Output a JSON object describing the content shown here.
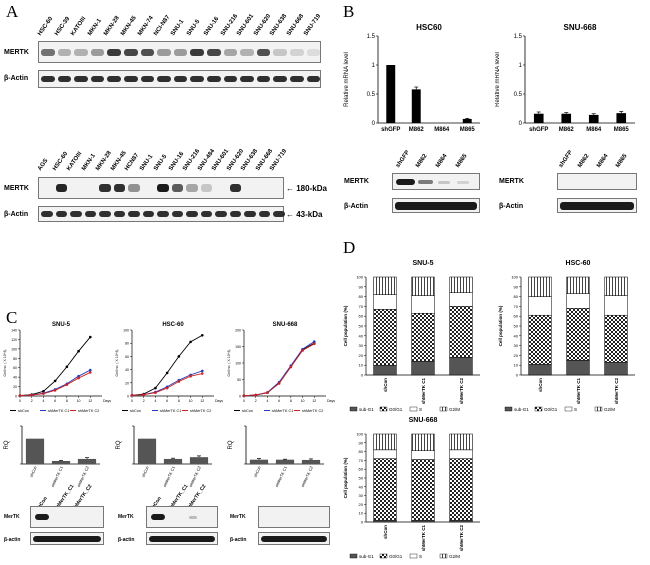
{
  "panels": {
    "A": {
      "letter": "A",
      "blot1": {
        "lanes": [
          "HSC-60",
          "HSC-39",
          "KATOIII",
          "MKN-1",
          "MKN-28",
          "MKN-45",
          "MKN-74",
          "NCI-N87",
          "SNU-1",
          "SNU-5",
          "SNU-16",
          "SNU-216",
          "SNU-601",
          "SNU-620",
          "SNU-638",
          "SNU-668",
          "SNU-719"
        ],
        "rows": [
          "MERTK",
          "β-Actin"
        ],
        "mertk_intensity": [
          0.6,
          0.3,
          0.3,
          0.4,
          0.85,
          0.8,
          0.75,
          0.4,
          0.4,
          0.85,
          0.8,
          0.35,
          0.3,
          0.75,
          0.2,
          0.15,
          0.1
        ]
      },
      "blot2": {
        "lanes": [
          "AGS",
          "HSC-60",
          "KATOIII",
          "MKN-1",
          "MKN-28",
          "MKN-45",
          "HCN87",
          "SNU-1",
          "SNU-5",
          "SNU-16",
          "SNU-216",
          "SNU-484",
          "SNU-601",
          "SNU-620",
          "SNU-638",
          "SNU-668",
          "SNU-719"
        ],
        "rows": [
          "MERTK",
          "β-Actin"
        ],
        "markers": [
          "180-kDa",
          "43-kDa"
        ],
        "mertk_intensity": [
          0.0,
          0.95,
          0.0,
          0.0,
          0.9,
          0.9,
          0.45,
          0.0,
          1.0,
          0.7,
          0.35,
          0.2,
          0.0,
          0.9,
          0.0,
          0.0,
          0.0
        ]
      }
    },
    "B": {
      "letter": "B",
      "charts_titles": [
        "HSC60",
        "SNU-668"
      ],
      "blot_lanes": [
        "shGFP",
        "M862",
        "M864",
        "M865"
      ],
      "blot_rows": [
        "MERTK",
        "β-Actin"
      ]
    },
    "C": {
      "letter": "C",
      "growth_titles": [
        "SNU-5",
        "HSC-60",
        "SNU-668"
      ],
      "growth_xaxis": "Days",
      "growth_ylabel": "Cell no. ( X 10^4)",
      "growth_legend": [
        "shCon",
        "shMerTK C1",
        "shMerTK C2"
      ],
      "rq_ylabel": "RQ",
      "rq_categories": [
        [
          "shCon",
          "shMerTK C1",
          "shMerTK C2"
        ],
        [
          "shCon",
          "shMerTK C1",
          "shMerTK C2"
        ],
        [
          "shCon",
          "shMerTK C1",
          "shMerTK C2"
        ]
      ],
      "blot_lanes": [
        "shCon",
        "shMerTK_C1",
        "shMerTK_C2"
      ],
      "blot_rows": [
        "MerTK",
        "β-actin"
      ]
    },
    "D": {
      "letter": "D",
      "ylabel": "Cell population (%)",
      "legend": [
        "sub-G1",
        "G0/G1",
        "S",
        "G2/M"
      ],
      "titles": [
        "SNU-5",
        "HSC-60",
        "SNU-668"
      ]
    }
  },
  "chart_data": [
    {
      "type": "bar",
      "panel": "B",
      "title": "HSC60",
      "categories": [
        "shGFP",
        "M862",
        "M864",
        "M865"
      ],
      "values": [
        1.0,
        0.58,
        0.0,
        0.07
      ],
      "errors": [
        0.0,
        0.04,
        0.0,
        0.01
      ],
      "xlabel": "",
      "ylabel": "Relative mRNA level",
      "ylim": [
        0,
        1.5
      ],
      "yticks": [
        0,
        0.5,
        1,
        1.5
      ],
      "grid": false
    },
    {
      "type": "bar",
      "panel": "B",
      "title": "SNU-668",
      "categories": [
        "shGFP",
        "M862",
        "M864",
        "M865"
      ],
      "values": [
        0.16,
        0.16,
        0.14,
        0.17
      ],
      "errors": [
        0.03,
        0.02,
        0.02,
        0.03
      ],
      "xlabel": "",
      "ylabel": "Relative mRNA level",
      "ylim": [
        0,
        1.5
      ],
      "yticks": [
        0,
        0.5,
        1,
        1.5
      ],
      "grid": false
    },
    {
      "type": "line",
      "panel": "C",
      "title": "SNU-5",
      "x": [
        0,
        2,
        4,
        6,
        8,
        10,
        12
      ],
      "series": [
        {
          "name": "shCon",
          "color": "#000000",
          "values": [
            1,
            3,
            10,
            32,
            62,
            95,
            125
          ]
        },
        {
          "name": "shMerTK C1",
          "color": "#1f3fbf",
          "values": [
            1,
            2,
            6,
            14,
            26,
            42,
            55
          ]
        },
        {
          "name": "shMerTK C2",
          "color": "#d42020",
          "values": [
            1,
            2,
            5,
            12,
            24,
            38,
            50
          ]
        }
      ],
      "xlabel": "Days",
      "ylabel": "Cell no. ( X 10^4)",
      "ylim": [
        0,
        140
      ],
      "xlim": [
        0,
        14
      ],
      "yticks": [
        0,
        20,
        40,
        60,
        80,
        100,
        120,
        140
      ],
      "xticks": [
        0,
        2,
        4,
        6,
        8,
        10,
        12
      ]
    },
    {
      "type": "line",
      "panel": "C",
      "title": "HSC-60",
      "x": [
        0,
        2,
        4,
        6,
        8,
        10,
        12
      ],
      "series": [
        {
          "name": "shCon",
          "color": "#000000",
          "values": [
            1,
            3,
            12,
            35,
            60,
            82,
            92
          ]
        },
        {
          "name": "shMerTK C1",
          "color": "#1f3fbf",
          "values": [
            1,
            2,
            6,
            14,
            24,
            32,
            38
          ]
        },
        {
          "name": "shMerTK C2",
          "color": "#d42020",
          "values": [
            1,
            2,
            5,
            12,
            22,
            30,
            34
          ]
        }
      ],
      "xlabel": "Days",
      "ylabel": "Cell no. ( X 10^4)",
      "ylim": [
        0,
        100
      ],
      "xlim": [
        0,
        14
      ],
      "yticks": [
        0,
        20,
        40,
        60,
        80,
        100
      ],
      "xticks": [
        0,
        2,
        4,
        6,
        8,
        10,
        12
      ]
    },
    {
      "type": "line",
      "panel": "C",
      "title": "SNU-668",
      "x": [
        0,
        2,
        4,
        6,
        8,
        10,
        12
      ],
      "series": [
        {
          "name": "shCon",
          "color": "#000000",
          "values": [
            1,
            3,
            10,
            40,
            90,
            140,
            160
          ]
        },
        {
          "name": "shMerTK C1",
          "color": "#1f3fbf",
          "values": [
            1,
            3,
            11,
            42,
            92,
            142,
            165
          ]
        },
        {
          "name": "shMerTK C2",
          "color": "#d42020",
          "values": [
            1,
            3,
            10,
            38,
            88,
            138,
            158
          ]
        }
      ],
      "xlabel": "Days",
      "ylabel": "Cell no. ( X 10^4)",
      "ylim": [
        0,
        200
      ],
      "xlim": [
        0,
        14
      ],
      "yticks": [
        0,
        50,
        100,
        150,
        200
      ],
      "xticks": [
        0,
        2,
        4,
        6,
        8,
        10,
        12
      ]
    },
    {
      "type": "bar",
      "panel": "C",
      "title": "SNU-5 RQ",
      "categories": [
        "shCon",
        "shMerTK C1",
        "shMerTK C2"
      ],
      "values": [
        1.0,
        0.12,
        0.2
      ],
      "errors": [
        0,
        0.02,
        0.05
      ],
      "xlabel": "",
      "ylabel": "RQ",
      "ylim": [
        0,
        1.5
      ]
    },
    {
      "type": "bar",
      "panel": "C",
      "title": "HSC-60 RQ",
      "categories": [
        "shCon",
        "shMerTK C1",
        "shMerTK C2"
      ],
      "values": [
        1.0,
        0.2,
        0.27
      ],
      "errors": [
        0,
        0.03,
        0.05
      ],
      "xlabel": "",
      "ylabel": "RQ",
      "ylim": [
        0,
        1.5
      ]
    },
    {
      "type": "bar",
      "panel": "C",
      "title": "SNU-668 RQ",
      "categories": [
        "shCon",
        "shMerTK C1",
        "shMerTK C2"
      ],
      "values": [
        0.17,
        0.17,
        0.16
      ],
      "errors": [
        0.05,
        0.02,
        0.04
      ],
      "xlabel": "",
      "ylabel": "RQ",
      "ylim": [
        0,
        1.5
      ]
    },
    {
      "type": "bar",
      "stacked": true,
      "panel": "D",
      "title": "SNU-5",
      "categories": [
        "shCon",
        "shMerTK C1",
        "shMerTK C2"
      ],
      "series": [
        {
          "name": "sub-G1",
          "values": [
            10,
            14,
            18
          ]
        },
        {
          "name": "G0/G1",
          "values": [
            57,
            49,
            52
          ]
        },
        {
          "name": "S",
          "values": [
            15,
            18,
            14
          ]
        },
        {
          "name": "G2/M",
          "values": [
            18,
            19,
            16
          ]
        }
      ],
      "ylabel": "Cell population (%)",
      "ylim": [
        0,
        100
      ],
      "yticks": [
        0,
        10,
        20,
        30,
        40,
        50,
        60,
        70,
        80,
        90,
        100
      ]
    },
    {
      "type": "bar",
      "stacked": true,
      "panel": "D",
      "title": "HSC-60",
      "categories": [
        "shCon",
        "shMerTK C1",
        "shMerTK C2"
      ],
      "series": [
        {
          "name": "sub-G1",
          "values": [
            11,
            15,
            13
          ]
        },
        {
          "name": "G0/G1",
          "values": [
            50,
            53,
            48
          ]
        },
        {
          "name": "S",
          "values": [
            19,
            15,
            20
          ]
        },
        {
          "name": "G2/M",
          "values": [
            20,
            17,
            19
          ]
        }
      ],
      "ylabel": "Cell population (%)",
      "ylim": [
        0,
        100
      ],
      "yticks": [
        0,
        10,
        20,
        30,
        40,
        50,
        60,
        70,
        80,
        90,
        100
      ]
    },
    {
      "type": "bar",
      "stacked": true,
      "panel": "D",
      "title": "SNU-668",
      "categories": [
        "shCon",
        "shMerTK C1",
        "shMerTK C2"
      ],
      "series": [
        {
          "name": "sub-G1",
          "values": [
            2,
            2,
            2
          ]
        },
        {
          "name": "G0/G1",
          "values": [
            70,
            69,
            70
          ]
        },
        {
          "name": "S",
          "values": [
            10,
            10,
            10
          ]
        },
        {
          "name": "G2/M",
          "values": [
            18,
            19,
            18
          ]
        }
      ],
      "ylabel": "Cell population (%)",
      "ylim": [
        0,
        100
      ],
      "yticks": [
        0,
        10,
        20,
        30,
        40,
        50,
        60,
        70,
        80,
        90,
        100
      ]
    }
  ]
}
